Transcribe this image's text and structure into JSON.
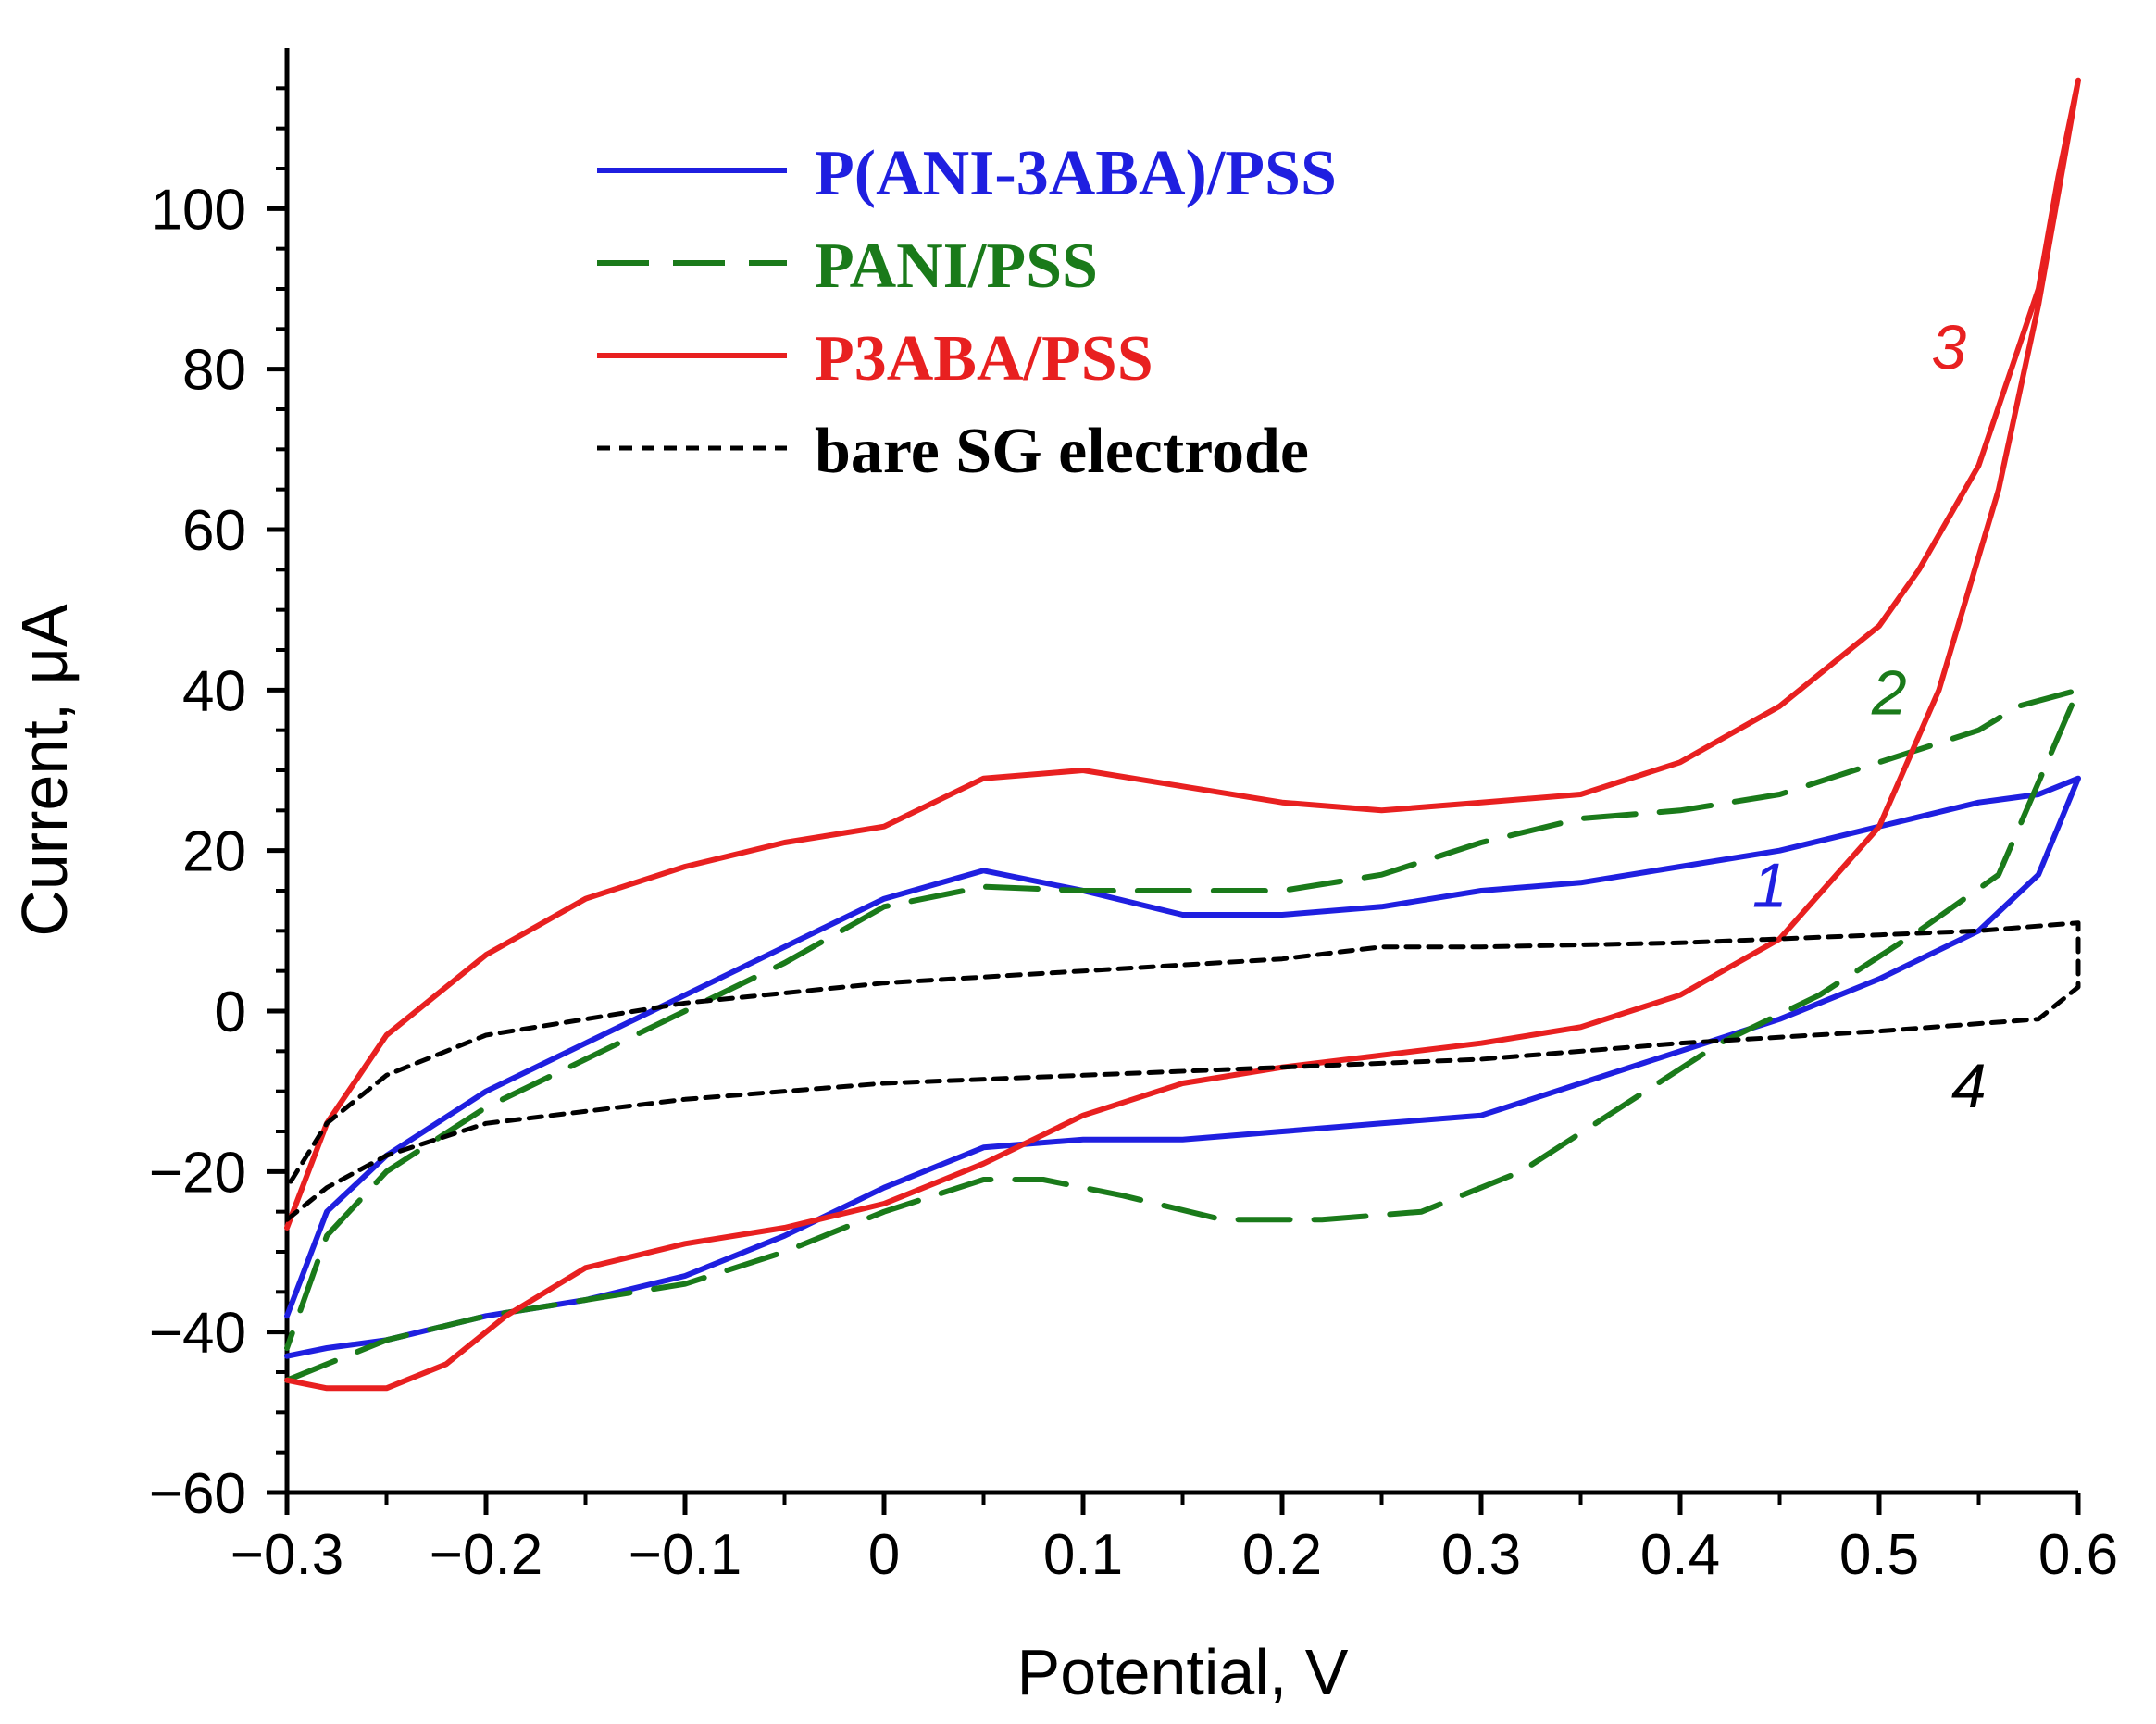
{
  "chart_data": {
    "type": "line",
    "title": "",
    "xlabel": "Potential, V",
    "ylabel": "Current, μA",
    "xlim": [
      -0.3,
      0.6
    ],
    "ylim": [
      -60,
      120
    ],
    "x_ticks": [
      -0.3,
      -0.2,
      -0.1,
      0,
      0.1,
      0.2,
      0.3,
      0.4,
      0.5,
      0.6
    ],
    "x_tick_labels": [
      "−0.3",
      "−0.2",
      "−0.1",
      "0",
      "0.1",
      "0.2",
      "0.3",
      "0.4",
      "0.5",
      "0.6"
    ],
    "y_ticks": [
      -60,
      -40,
      -20,
      0,
      20,
      40,
      60,
      80,
      100
    ],
    "y_tick_labels": [
      "−60",
      "−40",
      "−20",
      "0",
      "20",
      "40",
      "60",
      "80",
      "100"
    ],
    "grid": false,
    "legend_position": "top-left",
    "series": [
      {
        "name": "P(ANI-3ABA)/PSS",
        "color": "#1f1fe0",
        "style": "solid",
        "curve_label": "1",
        "points": [
          [
            -0.3,
            -43
          ],
          [
            -0.28,
            -42
          ],
          [
            -0.25,
            -41
          ],
          [
            -0.2,
            -38
          ],
          [
            -0.15,
            -36
          ],
          [
            -0.1,
            -33
          ],
          [
            -0.05,
            -28
          ],
          [
            0,
            -22
          ],
          [
            0.05,
            -17
          ],
          [
            0.1,
            -16
          ],
          [
            0.15,
            -16
          ],
          [
            0.2,
            -15
          ],
          [
            0.25,
            -14
          ],
          [
            0.3,
            -13
          ],
          [
            0.35,
            -9
          ],
          [
            0.4,
            -5
          ],
          [
            0.45,
            -1
          ],
          [
            0.5,
            4
          ],
          [
            0.55,
            10
          ],
          [
            0.58,
            17
          ],
          [
            0.6,
            29
          ],
          [
            0.58,
            27
          ],
          [
            0.55,
            26
          ],
          [
            0.5,
            23
          ],
          [
            0.45,
            20
          ],
          [
            0.4,
            18
          ],
          [
            0.35,
            16
          ],
          [
            0.3,
            15
          ],
          [
            0.25,
            13
          ],
          [
            0.2,
            12
          ],
          [
            0.15,
            12
          ],
          [
            0.1,
            15
          ],
          [
            0.05,
            17.5
          ],
          [
            0,
            14
          ],
          [
            -0.05,
            8
          ],
          [
            -0.1,
            2
          ],
          [
            -0.15,
            -4
          ],
          [
            -0.2,
            -10
          ],
          [
            -0.25,
            -18
          ],
          [
            -0.28,
            -25
          ],
          [
            -0.3,
            -38
          ]
        ]
      },
      {
        "name": "PANI/PSS",
        "color": "#1a7a1a",
        "style": "dashed",
        "curve_label": "2",
        "points": [
          [
            -0.3,
            -46
          ],
          [
            -0.27,
            -43
          ],
          [
            -0.25,
            -41
          ],
          [
            -0.2,
            -38
          ],
          [
            -0.15,
            -36
          ],
          [
            -0.1,
            -34
          ],
          [
            -0.05,
            -30
          ],
          [
            0,
            -25
          ],
          [
            0.05,
            -21
          ],
          [
            0.08,
            -21
          ],
          [
            0.12,
            -23
          ],
          [
            0.17,
            -26
          ],
          [
            0.22,
            -26
          ],
          [
            0.27,
            -25
          ],
          [
            0.32,
            -20
          ],
          [
            0.37,
            -12
          ],
          [
            0.42,
            -4
          ],
          [
            0.47,
            2
          ],
          [
            0.52,
            10
          ],
          [
            0.56,
            17
          ],
          [
            0.6,
            40
          ],
          [
            0.57,
            38
          ],
          [
            0.55,
            35
          ],
          [
            0.5,
            31
          ],
          [
            0.45,
            27
          ],
          [
            0.4,
            25
          ],
          [
            0.35,
            24
          ],
          [
            0.3,
            21
          ],
          [
            0.25,
            17
          ],
          [
            0.2,
            15
          ],
          [
            0.15,
            15
          ],
          [
            0.1,
            15
          ],
          [
            0.05,
            15.5
          ],
          [
            0,
            13
          ],
          [
            -0.05,
            6
          ],
          [
            -0.1,
            0
          ],
          [
            -0.15,
            -6
          ],
          [
            -0.2,
            -12
          ],
          [
            -0.25,
            -20
          ],
          [
            -0.28,
            -28
          ],
          [
            -0.3,
            -42
          ]
        ]
      },
      {
        "name": "P3ABA/PSS",
        "color": "#e82020",
        "style": "solid",
        "curve_label": "3",
        "points": [
          [
            -0.3,
            -46
          ],
          [
            -0.28,
            -47
          ],
          [
            -0.25,
            -47
          ],
          [
            -0.22,
            -44
          ],
          [
            -0.19,
            -38
          ],
          [
            -0.15,
            -32
          ],
          [
            -0.1,
            -29
          ],
          [
            -0.05,
            -27
          ],
          [
            0,
            -24
          ],
          [
            0.05,
            -19
          ],
          [
            0.1,
            -13
          ],
          [
            0.15,
            -9
          ],
          [
            0.2,
            -7
          ],
          [
            0.25,
            -5.5
          ],
          [
            0.3,
            -4
          ],
          [
            0.35,
            -2
          ],
          [
            0.4,
            2
          ],
          [
            0.45,
            9
          ],
          [
            0.5,
            23
          ],
          [
            0.53,
            40
          ],
          [
            0.56,
            65
          ],
          [
            0.58,
            88
          ],
          [
            0.6,
            116
          ],
          [
            0.59,
            104
          ],
          [
            0.58,
            90
          ],
          [
            0.55,
            68
          ],
          [
            0.52,
            55
          ],
          [
            0.5,
            48
          ],
          [
            0.45,
            38
          ],
          [
            0.4,
            31
          ],
          [
            0.35,
            27
          ],
          [
            0.3,
            26
          ],
          [
            0.25,
            25
          ],
          [
            0.2,
            26
          ],
          [
            0.15,
            28
          ],
          [
            0.1,
            30
          ],
          [
            0.05,
            29
          ],
          [
            0,
            23
          ],
          [
            -0.05,
            21
          ],
          [
            -0.1,
            18
          ],
          [
            -0.15,
            14
          ],
          [
            -0.2,
            7
          ],
          [
            -0.25,
            -3
          ],
          [
            -0.28,
            -14
          ],
          [
            -0.3,
            -27
          ]
        ]
      },
      {
        "name": "bare SG electrode",
        "color": "#000000",
        "style": "dotted",
        "curve_label": "4",
        "points": [
          [
            -0.3,
            -26
          ],
          [
            -0.28,
            -22
          ],
          [
            -0.25,
            -18
          ],
          [
            -0.2,
            -14
          ],
          [
            -0.1,
            -11
          ],
          [
            0,
            -9
          ],
          [
            0.1,
            -8
          ],
          [
            0.2,
            -7
          ],
          [
            0.3,
            -6
          ],
          [
            0.4,
            -4
          ],
          [
            0.5,
            -2.5
          ],
          [
            0.58,
            -1
          ],
          [
            0.6,
            3
          ],
          [
            0.6,
            11
          ],
          [
            0.55,
            10
          ],
          [
            0.5,
            9.5
          ],
          [
            0.4,
            8.5
          ],
          [
            0.3,
            8
          ],
          [
            0.25,
            8
          ],
          [
            0.2,
            6.5
          ],
          [
            0.1,
            5
          ],
          [
            0,
            3.5
          ],
          [
            -0.1,
            1
          ],
          [
            -0.15,
            -1
          ],
          [
            -0.2,
            -3
          ],
          [
            -0.25,
            -8
          ],
          [
            -0.28,
            -14
          ],
          [
            -0.3,
            -22
          ]
        ]
      }
    ],
    "curve_label_positions": [
      {
        "text": "1",
        "x": 0.445,
        "y": 13
      },
      {
        "text": "2",
        "x": 0.505,
        "y": 37
      },
      {
        "text": "3",
        "x": 0.535,
        "y": 80
      },
      {
        "text": "4",
        "x": 0.545,
        "y": -12
      }
    ]
  }
}
